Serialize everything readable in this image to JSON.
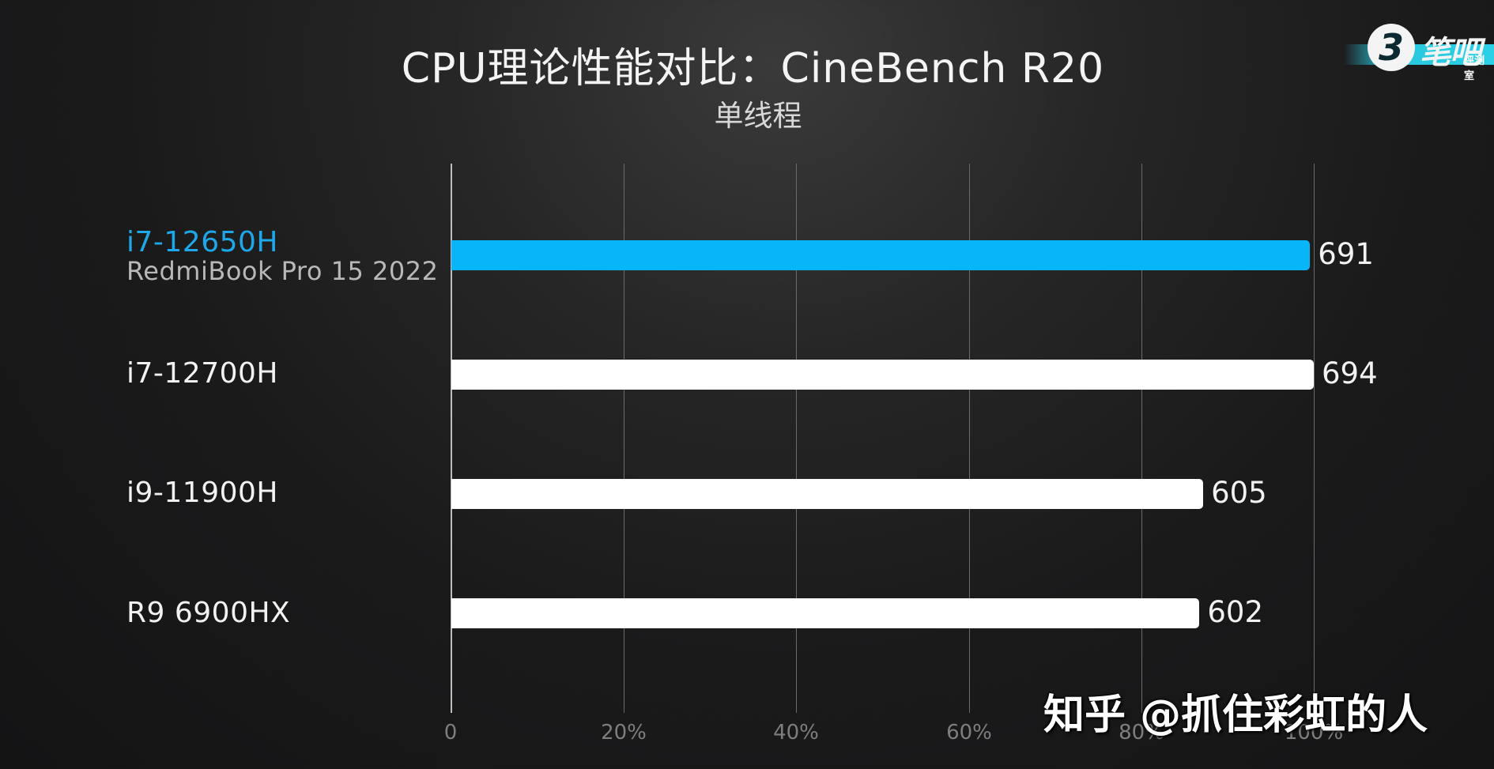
{
  "chart_data": {
    "type": "bar",
    "orientation": "horizontal",
    "title": "CPU理论性能对比：CineBench R20",
    "subtitle": "单线程",
    "categories": [
      "i7-12650H",
      "i7-12700H",
      "i9-11900H",
      "R9 6900HX"
    ],
    "category_sublabels": [
      "RedmiBook Pro 15 2022",
      "",
      "",
      ""
    ],
    "values": [
      691,
      694,
      605,
      602
    ],
    "value_labels": [
      "691",
      "694",
      "605",
      "602"
    ],
    "highlight_index": 0,
    "xlabel": "",
    "ylabel": "",
    "x_ticks": [
      "0",
      "20%",
      "40%",
      "60%",
      "80%",
      "100%"
    ],
    "x_range_percent": [
      0,
      100
    ],
    "scale_max_value": 694,
    "grid": true,
    "legend": null,
    "colors": {
      "highlight": "#06b6f6",
      "default": "#ffffff",
      "highlight_label": "#1ea8ea"
    }
  },
  "logo": {
    "number": "3",
    "brand": "笔吧",
    "brand_sub": "评测室"
  },
  "watermark": "知乎 @抓住彩虹的人"
}
